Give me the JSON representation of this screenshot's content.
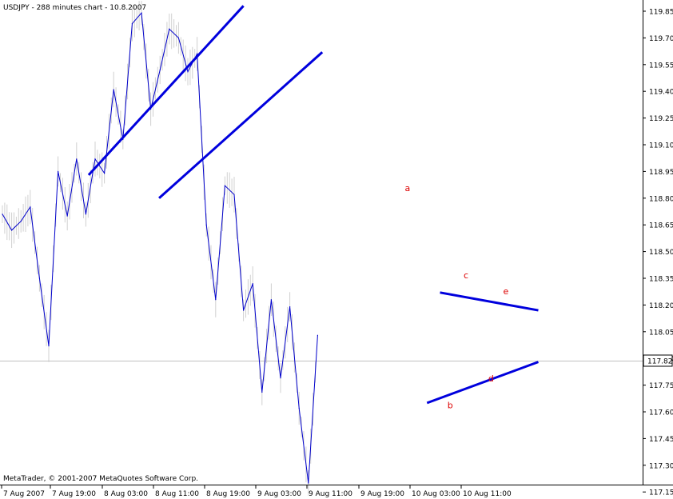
{
  "header": {
    "title": "USDJPY - 288 minutes chart - 10.8.2007"
  },
  "footer": {
    "copyright": "MetaTrader, © 2001-2007 MetaQuotes Software Corp."
  },
  "colors": {
    "line": "#0000cc",
    "trendline": "#0000dd",
    "annotation": "#dd0000",
    "bid_line": "#c0c0c0",
    "shadow": "#d0d0d0"
  },
  "chart_data": {
    "type": "line",
    "title": "USDJPY - 288 minutes chart - 10.8.2007",
    "y_ticks": [
      "119.85",
      "119.70",
      "119.55",
      "119.40",
      "119.25",
      "119.10",
      "118.95",
      "118.80",
      "118.65",
      "118.50",
      "118.35",
      "118.20",
      "118.05",
      "117.90",
      "117.75",
      "117.60",
      "117.45",
      "117.30",
      "117.15"
    ],
    "x_ticks": [
      "7 Aug 2007",
      "7 Aug 19:00",
      "8 Aug 03:00",
      "8 Aug 11:00",
      "8 Aug 19:00",
      "9 Aug 03:00",
      "9 Aug 11:00",
      "9 Aug 19:00",
      "10 Aug 03:00",
      "10 Aug 11:00"
    ],
    "current_price": "117.82",
    "ylim": [
      117.13,
      119.9
    ],
    "series": [
      {
        "values": [
          118.71,
          118.62,
          118.67,
          118.75,
          118.35,
          117.97,
          118.95,
          118.7,
          119.02,
          118.71,
          119.02,
          118.94,
          119.41,
          119.13,
          119.78,
          119.84,
          119.3,
          119.52,
          119.75,
          119.7,
          119.51,
          119.61,
          118.65,
          118.23,
          118.87,
          118.82,
          118.17,
          118.32,
          117.71,
          118.23,
          117.79,
          118.19,
          117.62,
          117.2,
          118.03
        ]
      }
    ],
    "trendlines": [
      {
        "name": "upper-channel",
        "from": [
          9.3,
          118.93
        ],
        "to": [
          26.0,
          119.88
        ]
      },
      {
        "name": "lower-channel",
        "from": [
          16.9,
          118.8
        ],
        "to": [
          34.5,
          119.62
        ]
      },
      {
        "name": "triangle-top",
        "from": [
          47.2,
          118.27
        ],
        "to": [
          57.8,
          118.17
        ]
      },
      {
        "name": "triangle-bottom",
        "from": [
          45.8,
          117.65
        ],
        "to": [
          57.8,
          117.88
        ]
      }
    ],
    "annotations": [
      {
        "label": "a",
        "x": 43.7,
        "y": 118.84
      },
      {
        "label": "b",
        "x": 48.3,
        "y": 117.62
      },
      {
        "label": "c",
        "x": 50.0,
        "y": 118.35
      },
      {
        "label": "d",
        "x": 52.7,
        "y": 117.77
      },
      {
        "label": "e",
        "x": 54.3,
        "y": 118.26
      }
    ]
  }
}
